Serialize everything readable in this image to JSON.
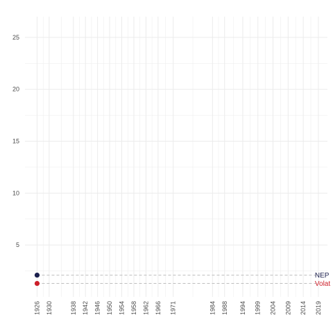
{
  "chart_data": {
    "type": "scatter",
    "title": "",
    "xlabel": "",
    "ylabel": "",
    "xlim": [
      1922,
      2022
    ],
    "ylim": [
      0,
      27
    ],
    "y_ticks": [
      5,
      10,
      15,
      20,
      25
    ],
    "x_tick_labels": [
      "1926",
      "1930",
      "1938",
      "1942",
      "1946",
      "1950",
      "1954",
      "1958",
      "1962",
      "1966",
      "1971",
      "1984",
      "1988",
      "1994",
      "1999",
      "2004",
      "2009",
      "2014",
      "2019"
    ],
    "grid": true,
    "legend": "none",
    "series": [
      {
        "label": "NEP",
        "color": "#1b1f4d",
        "points": [
          {
            "x": 1926,
            "y": 2.1
          }
        ],
        "line_to": 2019
      },
      {
        "label": "Volat",
        "color": "#cc1f2a",
        "points": [
          {
            "x": 1926,
            "y": 1.3
          }
        ],
        "line_to": 2019
      }
    ],
    "colors": {
      "grid": "#ebebeb",
      "tick_text": "#4d4d4d",
      "dash_line": "#bdbdbd",
      "background": "#ffffff"
    }
  }
}
